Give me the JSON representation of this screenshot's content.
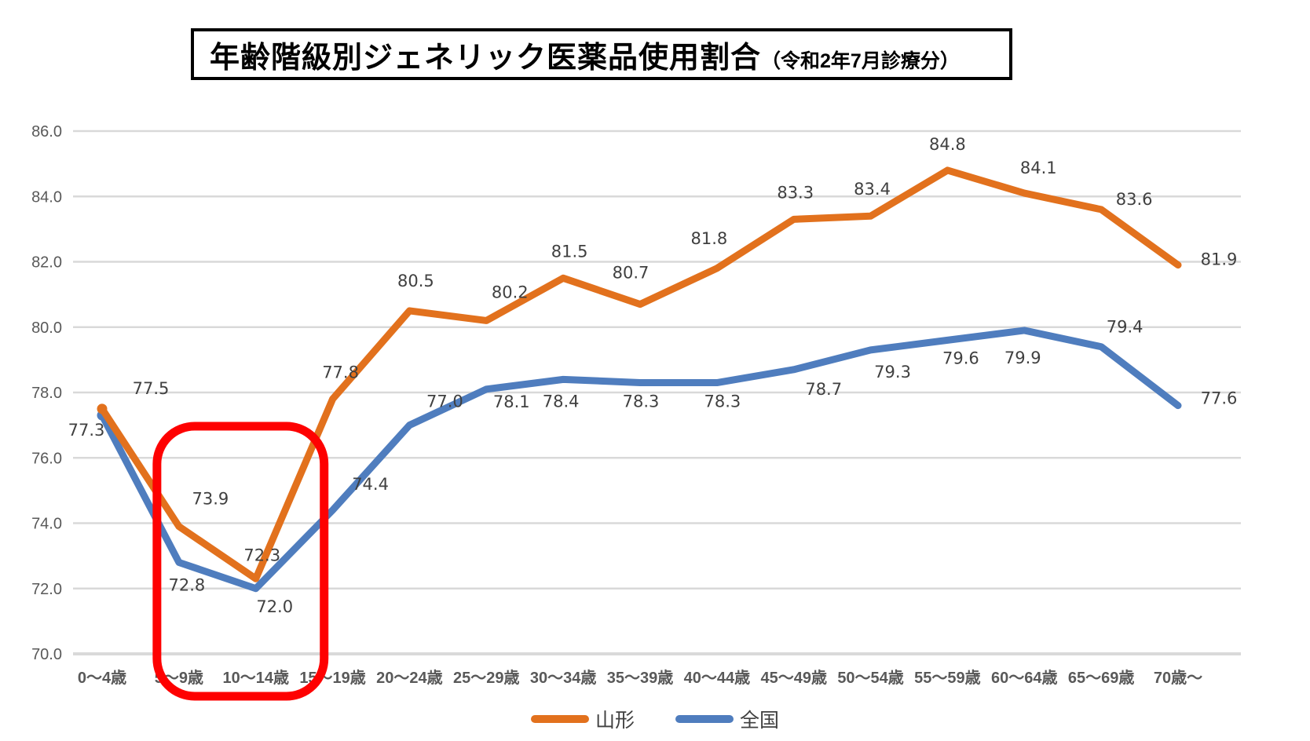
{
  "title": {
    "main": "年齢階級別ジェネリック医薬品使用割合",
    "sub": "（令和2年7月診療分）"
  },
  "chart_data": {
    "type": "line",
    "title": "年齢階級別ジェネリック医薬品使用割合（令和2年7月診療分）",
    "categories": [
      "0～4歳",
      "5～9歳",
      "10～14歳",
      "15～19歳",
      "20～24歳",
      "25～29歳",
      "30～34歳",
      "35～39歳",
      "40～44歳",
      "45～49歳",
      "50～54歳",
      "55～59歳",
      "60～64歳",
      "65～69歳",
      "70歳～"
    ],
    "series": [
      {
        "name": "山形",
        "color": "#E2711D",
        "values": [
          77.5,
          73.9,
          72.3,
          77.8,
          80.5,
          80.2,
          81.5,
          80.7,
          81.8,
          83.3,
          83.4,
          84.8,
          84.1,
          83.6,
          81.9
        ]
      },
      {
        "name": "全国",
        "color": "#4F7DBE",
        "values": [
          77.3,
          72.8,
          72.0,
          74.4,
          77.0,
          78.1,
          78.4,
          78.3,
          78.3,
          78.7,
          79.3,
          79.6,
          79.9,
          79.4,
          77.6
        ]
      }
    ],
    "ylim": [
      70.0,
      86.0
    ],
    "ytick_step": 2.0,
    "ytick_labels": [
      "86.0",
      "84.0",
      "82.0",
      "80.0",
      "78.0",
      "76.0",
      "74.0",
      "72.0",
      "70.0"
    ],
    "grid": true,
    "gridline_color": "#D9D9D9",
    "value_label_color": "#404040",
    "axis_label_color": "#595959",
    "legend_position": "bottom-center",
    "annotation": {
      "type": "highlight-box",
      "color": "#FE0101",
      "categories": [
        "5～9歳",
        "10～14歳"
      ]
    }
  }
}
